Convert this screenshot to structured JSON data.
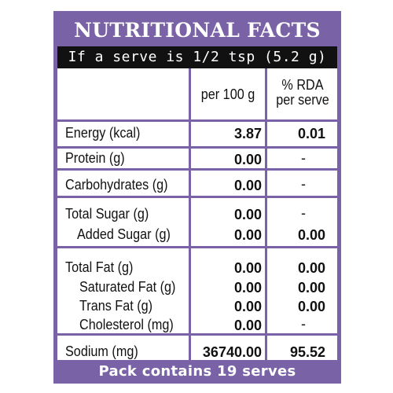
{
  "title": "NUTRITIONAL FACTS",
  "serve_info": "If a serve is 1/2 tsp (5.2 g)",
  "columns": {
    "per100": "per 100 g",
    "rda_line1": "% RDA",
    "rda_line2": "per serve"
  },
  "rows": [
    {
      "label": "Energy (kcal)",
      "per100": "3.87",
      "rda": "0.01"
    },
    {
      "label": "Protein (g)",
      "per100": "0.00",
      "rda": "-"
    },
    {
      "label": "Carbohydrates (g)",
      "per100": "0.00",
      "rda": "-"
    },
    {
      "label": "Total Sugar (g)",
      "per100": "0.00",
      "rda": "-"
    },
    {
      "label": "Added Sugar (g)",
      "per100": "0.00",
      "rda": "0.00"
    },
    {
      "label": "Total Fat (g)",
      "per100": "0.00",
      "rda": "0.00"
    },
    {
      "label": "Saturated Fat (g)",
      "per100": "0.00",
      "rda": "0.00"
    },
    {
      "label": "Trans Fat (g)",
      "per100": "0.00",
      "rda": "0.00"
    },
    {
      "label": "Cholesterol (mg)",
      "per100": "0.00",
      "rda": "-"
    },
    {
      "label": "Sodium (mg)",
      "per100": "36740.00",
      "rda": "95.52"
    }
  ],
  "footer": "Pack contains 19 serves",
  "colors": {
    "accent": "#7a62a6",
    "serve_bar": "#111111"
  }
}
